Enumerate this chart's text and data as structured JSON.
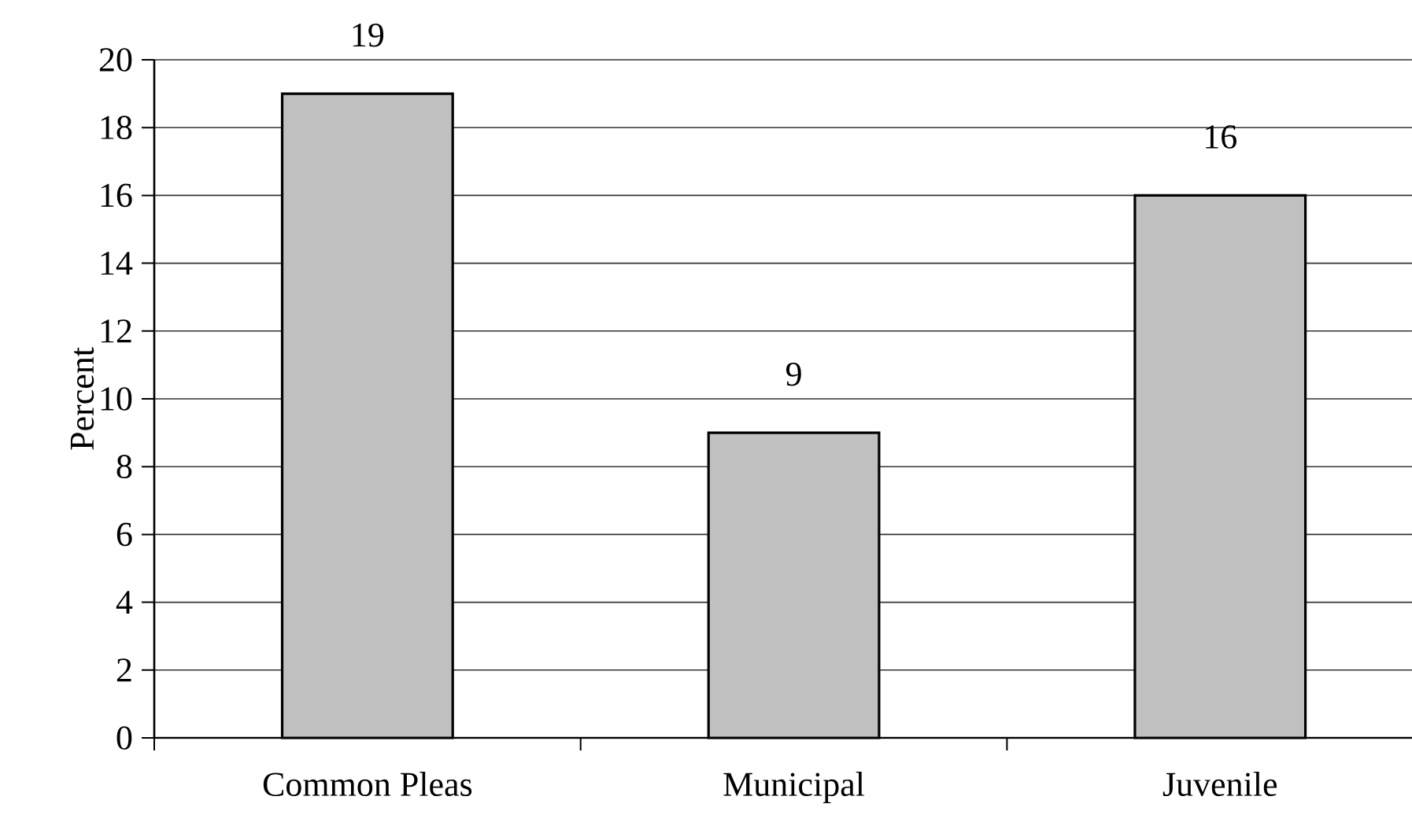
{
  "chart_data": {
    "type": "bar",
    "ylabel": "Percent",
    "categories": [
      "Common Pleas",
      "Municipal",
      "Juvenile"
    ],
    "values": [
      19,
      9,
      16
    ],
    "color": "#c0c0c0",
    "ylim": [
      0,
      20
    ],
    "yticks": [
      0,
      2,
      4,
      6,
      8,
      10,
      12,
      14,
      16,
      18,
      20
    ],
    "grid": "y",
    "data_labels": true
  }
}
